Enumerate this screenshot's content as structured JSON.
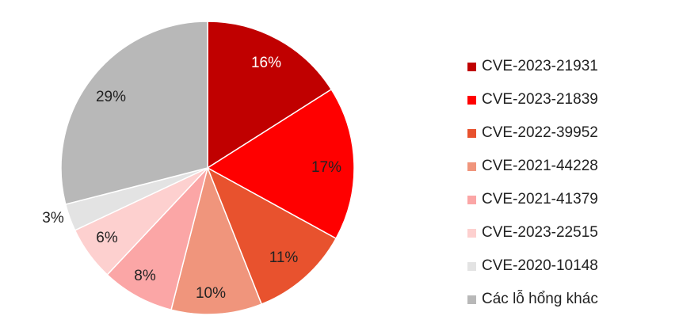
{
  "chart_data": {
    "type": "pie",
    "title": "",
    "legend_position": "right",
    "start_angle_deg": 0,
    "direction": "clockwise",
    "slices": [
      {
        "label": "CVE-2023-21931",
        "value": 16,
        "display": "16%",
        "color": "#c00000",
        "label_color": "#ffffff"
      },
      {
        "label": "CVE-2023-21839",
        "value": 17,
        "display": "17%",
        "color": "#ff0000",
        "label_color": "#222222"
      },
      {
        "label": "CVE-2022-39952",
        "value": 11,
        "display": "11%",
        "color": "#e8522e",
        "label_color": "#222222"
      },
      {
        "label": "CVE-2021-44228",
        "value": 10,
        "display": "10%",
        "color": "#f0957c",
        "label_color": "#222222"
      },
      {
        "label": "CVE-2021-41379",
        "value": 8,
        "display": "8%",
        "color": "#fba6a6",
        "label_color": "#222222"
      },
      {
        "label": "CVE-2023-22515",
        "value": 6,
        "display": "6%",
        "color": "#fdd0cf",
        "label_color": "#222222"
      },
      {
        "label": "CVE-2020-10148",
        "value": 3,
        "display": "3%",
        "color": "#e3e3e3",
        "label_color": "#222222"
      },
      {
        "label": "Các lỗ hổng khác",
        "value": 29,
        "display": "29%",
        "color": "#b8b8b8",
        "label_color": "#222222"
      }
    ]
  }
}
